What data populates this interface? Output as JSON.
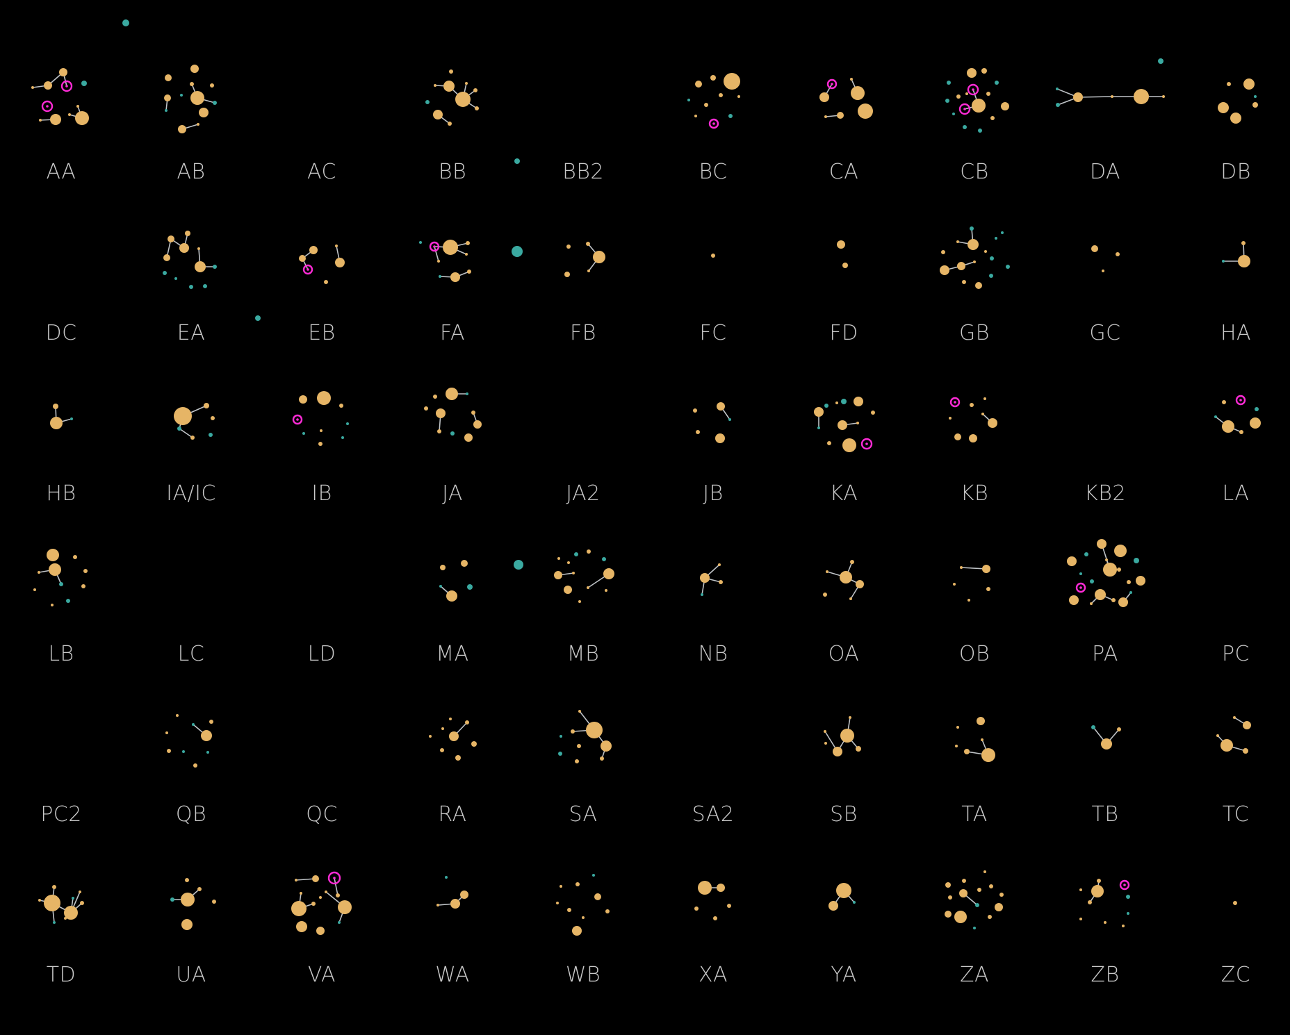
{
  "colors": {
    "background": "#000000",
    "node_large": "#e6b566",
    "node_small_teal": "#3aa9a0",
    "node_highlight_ring": "#ff2bd6",
    "edge": "#bfc3c7",
    "label": "#c9c9c9"
  },
  "cells": [
    {
      "label": "AA"
    },
    {
      "label": "AB"
    },
    {
      "label": "AC"
    },
    {
      "label": "BB"
    },
    {
      "label": "BB2"
    },
    {
      "label": "BC"
    },
    {
      "label": "CA"
    },
    {
      "label": "CB"
    },
    {
      "label": "DA"
    },
    {
      "label": "DB"
    },
    {
      "label": "DC"
    },
    {
      "label": "EA"
    },
    {
      "label": "EB"
    },
    {
      "label": "FA"
    },
    {
      "label": "FB"
    },
    {
      "label": "FC"
    },
    {
      "label": "FD"
    },
    {
      "label": "GB"
    },
    {
      "label": "GC"
    },
    {
      "label": "HA"
    },
    {
      "label": "HB"
    },
    {
      "label": "IA/IC"
    },
    {
      "label": "IB"
    },
    {
      "label": "JA"
    },
    {
      "label": "JA2"
    },
    {
      "label": "JB"
    },
    {
      "label": "KA"
    },
    {
      "label": "KB"
    },
    {
      "label": "KB2"
    },
    {
      "label": "LA"
    },
    {
      "label": "LB"
    },
    {
      "label": "LC"
    },
    {
      "label": "LD"
    },
    {
      "label": "MA"
    },
    {
      "label": "MB"
    },
    {
      "label": "NB"
    },
    {
      "label": "OA"
    },
    {
      "label": "OB"
    },
    {
      "label": "PA"
    },
    {
      "label": "PC"
    },
    {
      "label": "PC2"
    },
    {
      "label": "QB"
    },
    {
      "label": "QC"
    },
    {
      "label": "RA"
    },
    {
      "label": "SA"
    },
    {
      "label": "SA2"
    },
    {
      "label": "SB"
    },
    {
      "label": "TA"
    },
    {
      "label": "TB"
    },
    {
      "label": "TC"
    },
    {
      "label": "TD"
    },
    {
      "label": "UA"
    },
    {
      "label": "VA"
    },
    {
      "label": "WA"
    },
    {
      "label": "WB"
    },
    {
      "label": "XA"
    },
    {
      "label": "YA"
    },
    {
      "label": "ZA"
    },
    {
      "label": "ZB"
    },
    {
      "label": "ZC"
    }
  ]
}
